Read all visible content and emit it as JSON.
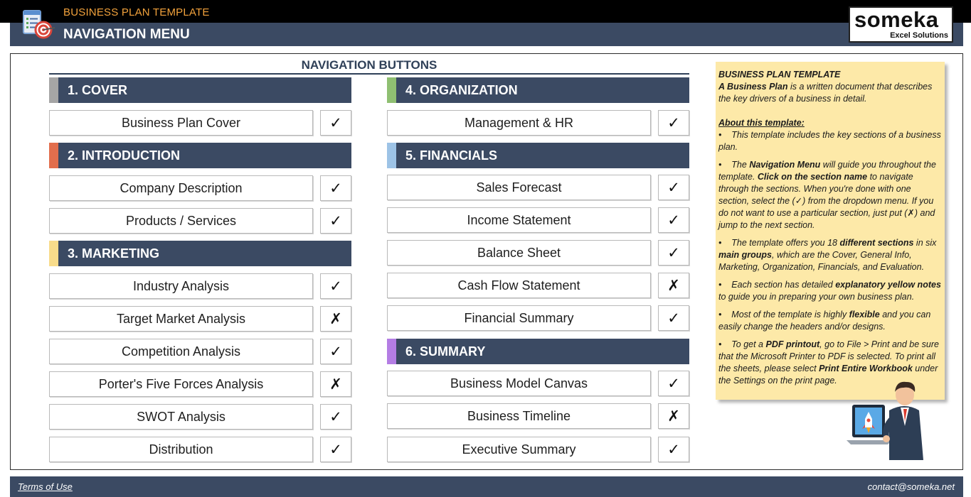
{
  "header": {
    "app_title": "BUSINESS PLAN TEMPLATE",
    "page_title": "NAVIGATION MENU",
    "logo_name": "someka",
    "logo_sub": "Excel Solutions"
  },
  "nav_heading": "NAVIGATION BUTTONS",
  "colors": {
    "slate": "#3b4a63",
    "cover": "#a5a5a5",
    "introduction": "#e26e4d",
    "marketing": "#f8dc8b",
    "organization": "#8fbf72",
    "financials": "#9dc3e6",
    "summary": "#b47de4",
    "note_bg": "#fde9a8"
  },
  "sections": {
    "cover": {
      "title": "1. COVER",
      "items": [
        {
          "label": "Business Plan Cover",
          "status": "✓"
        }
      ]
    },
    "introduction": {
      "title": "2. INTRODUCTION",
      "items": [
        {
          "label": "Company Description",
          "status": "✓"
        },
        {
          "label": "Products / Services",
          "status": "✓"
        }
      ]
    },
    "marketing": {
      "title": "3. MARKETING",
      "items": [
        {
          "label": "Industry Analysis",
          "status": "✓"
        },
        {
          "label": "Target Market Analysis",
          "status": "✗"
        },
        {
          "label": "Competition Analysis",
          "status": "✓"
        },
        {
          "label": "Porter's Five Forces Analysis",
          "status": "✗"
        },
        {
          "label": "SWOT Analysis",
          "status": "✓"
        },
        {
          "label": "Distribution",
          "status": "✓"
        }
      ]
    },
    "organization": {
      "title": "4. ORGANIZATION",
      "items": [
        {
          "label": "Management & HR",
          "status": "✓"
        }
      ]
    },
    "financials": {
      "title": "5. FINANCIALS",
      "items": [
        {
          "label": "Sales Forecast",
          "status": "✓"
        },
        {
          "label": "Income Statement",
          "status": "✓"
        },
        {
          "label": "Balance Sheet",
          "status": "✓"
        },
        {
          "label": "Cash Flow Statement",
          "status": "✗"
        },
        {
          "label": "Financial Summary",
          "status": "✓"
        }
      ]
    },
    "summary": {
      "title": "6. SUMMARY",
      "items": [
        {
          "label": "Business Model Canvas",
          "status": "✓"
        },
        {
          "label": "Business Timeline",
          "status": "✗"
        },
        {
          "label": "Executive Summary",
          "status": "✓"
        }
      ]
    }
  },
  "note": {
    "title": "BUSINESS PLAN TEMPLATE",
    "intro_bold": "A Business Plan",
    "intro_rest": " is a written document that describes the key drivers of a business in detail.",
    "about_heading": "About this template:",
    "b1": "This template includes the key sections of a business plan.",
    "b2_a": "The ",
    "b2_b": "Navigation Menu",
    "b2_c": " will guide you throughout the template. ",
    "b2_d": "Click on the section name",
    "b2_e": " to navigate through the sections. When you're done with one section, select the (✓) from the dropdown menu. If you do not want to use a particular section, just put (✗) and jump to the next section.",
    "b3_a": "The template offers you 18 ",
    "b3_b": "different sections",
    "b3_c": " in six ",
    "b3_d": "main groups",
    "b3_e": ", which are the Cover, General Info, Marketing, Organization, Financials, and Evaluation.",
    "b4_a": "Each section has detailed ",
    "b4_b": "explanatory yellow notes",
    "b4_c": " to guide you in preparing your own business plan.",
    "b5_a": "Most of the template is highly ",
    "b5_b": "flexible",
    "b5_c": " and you can easily change the headers and/or designs.",
    "b6_a": "To get a ",
    "b6_b": "PDF printout",
    "b6_c": ", go to File > Print and be sure that the Microsoft Printer to PDF is selected. To print all the sheets, please select ",
    "b6_d": "Print Entire Workbook",
    "b6_e": " under the Settings on the print page.",
    "bullet_char": "•"
  },
  "footer": {
    "terms": "Terms of Use",
    "contact": "contact@someka.net"
  }
}
